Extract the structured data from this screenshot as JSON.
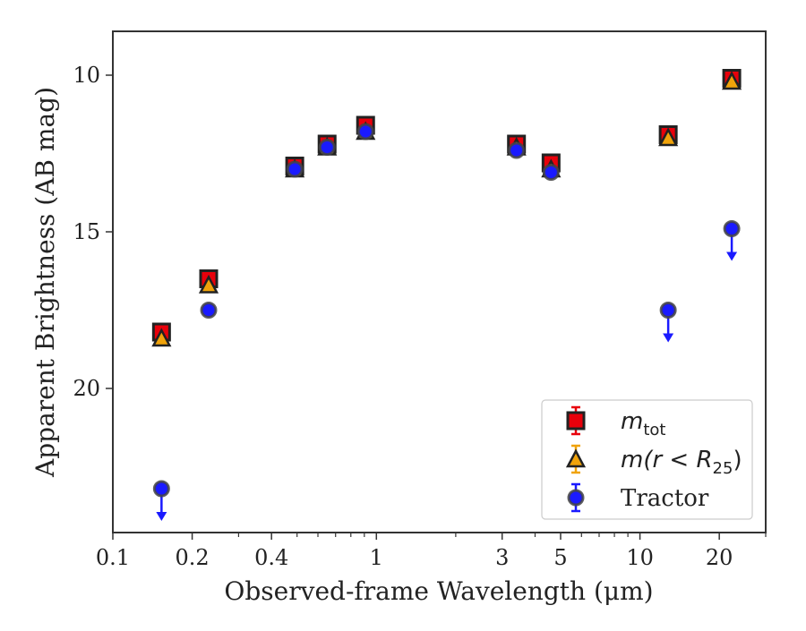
{
  "chart_data": {
    "type": "scatter",
    "xlabel": "Observed-frame Wavelength (μm)",
    "ylabel": "Apparent Brightness (AB mag)",
    "x_scale": "log",
    "xlim": [
      0.1,
      30
    ],
    "ylim": [
      24.6,
      8.6
    ],
    "y_inverted": true,
    "x_ticks": [
      {
        "value": 0.1,
        "label": "0.1"
      },
      {
        "value": 0.2,
        "label": "0.2"
      },
      {
        "value": 0.4,
        "label": "0.4"
      },
      {
        "value": 1,
        "label": "1"
      },
      {
        "value": 3,
        "label": "3"
      },
      {
        "value": 5,
        "label": "5"
      },
      {
        "value": 10,
        "label": "10"
      },
      {
        "value": 20,
        "label": "20"
      }
    ],
    "y_ticks": [
      {
        "value": 10,
        "label": "10"
      },
      {
        "value": 15,
        "label": "15"
      },
      {
        "value": 20,
        "label": "20"
      }
    ],
    "grid": false,
    "legend_position": "bottom-right",
    "series": [
      {
        "name": "m_tot",
        "marker": "square",
        "color": "#e8000b",
        "edge_color": "#222222",
        "x": [
          0.153,
          0.231,
          0.49,
          0.65,
          0.91,
          3.4,
          4.6,
          12.8,
          22.3
        ],
        "y": [
          18.2,
          16.5,
          12.9,
          12.2,
          11.6,
          12.2,
          12.8,
          11.9,
          10.1
        ],
        "upper_limit": [
          false,
          false,
          false,
          false,
          false,
          false,
          false,
          false,
          false
        ]
      },
      {
        "name": "m(r < R_25)",
        "marker": "triangle",
        "color": "#f0a30a",
        "edge_color": "#222222",
        "x": [
          0.153,
          0.231,
          0.49,
          0.65,
          0.91,
          3.4,
          4.6,
          12.8,
          22.3
        ],
        "y": [
          18.4,
          16.7,
          13.0,
          12.3,
          11.8,
          12.3,
          13.0,
          12.0,
          10.2
        ],
        "upper_limit": [
          false,
          false,
          false,
          false,
          false,
          false,
          false,
          false,
          false
        ]
      },
      {
        "name": "Tractor",
        "marker": "circle",
        "color": "#1a1aff",
        "edge_color": "#444444",
        "x": [
          0.153,
          0.231,
          0.49,
          0.65,
          0.91,
          3.4,
          4.6,
          12.8,
          22.3
        ],
        "y": [
          23.2,
          17.5,
          13.0,
          12.3,
          11.8,
          12.4,
          13.1,
          17.5,
          14.9
        ],
        "upper_limit": [
          true,
          false,
          false,
          false,
          false,
          false,
          false,
          true,
          true
        ]
      }
    ],
    "legend": [
      {
        "label_main": "m",
        "label_sub": "tot",
        "label_tail": ""
      },
      {
        "label_main": "m(r < R",
        "label_sub": "25",
        "label_tail": ")"
      },
      {
        "label_main": "Tractor",
        "label_sub": "",
        "label_tail": ""
      }
    ]
  }
}
